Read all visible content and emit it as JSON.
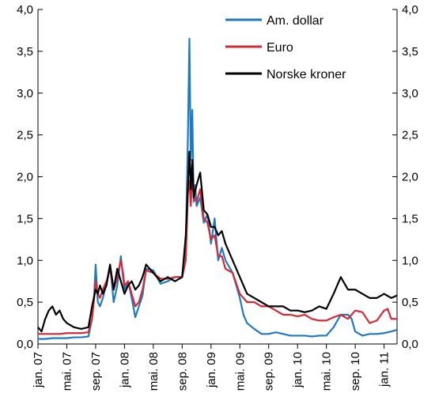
{
  "chart_data": {
    "type": "line",
    "title": "",
    "xlabel": "",
    "ylabel": "",
    "ylim": [
      0,
      4
    ],
    "yticks": [
      "0,0",
      "0,5",
      "1,0",
      "1,5",
      "2,0",
      "2,5",
      "3,0",
      "3,5",
      "4,0"
    ],
    "dual_y_axis": true,
    "grid": false,
    "legend_position": "top-right",
    "x_tick_labels": [
      "jan. 07",
      "mai. 07",
      "sep. 07",
      "jan. 08",
      "mai. 08",
      "sep. 08",
      "jan. 09",
      "mai. 09",
      "sep. 09",
      "jan. 10",
      "mai. 10",
      "sep. 10",
      "jan. 11"
    ],
    "x_tick_months": [
      0,
      4,
      8,
      12,
      16,
      20,
      24,
      28,
      32,
      36,
      40,
      44,
      48
    ],
    "x_range_months": [
      0,
      49.8
    ],
    "x_unit": "months since jan. 07",
    "series": [
      {
        "name": "Am. dollar",
        "color": "#1f7ac4",
        "x": [
          0,
          0.5,
          1,
          2,
          3,
          4,
          5,
          6,
          7,
          7.5,
          7.8,
          8,
          8.3,
          8.6,
          9,
          9.5,
          10,
          10.5,
          11,
          11.5,
          11.8,
          12,
          12.5,
          13,
          13.5,
          14,
          14.5,
          15,
          16,
          17,
          18,
          19,
          20,
          20.5,
          20.8,
          21,
          21.2,
          21.4,
          21.6,
          21.8,
          22,
          22.5,
          23,
          23.5,
          24,
          24.5,
          25,
          25.5,
          26,
          27,
          28,
          28.5,
          29,
          30,
          31,
          32,
          33,
          34,
          35,
          36,
          37,
          38,
          39,
          40,
          41,
          42,
          43,
          43.5,
          44,
          45,
          46,
          47,
          48,
          49,
          49.8
        ],
        "y": [
          0.06,
          0.06,
          0.06,
          0.07,
          0.07,
          0.07,
          0.08,
          0.08,
          0.09,
          0.3,
          0.6,
          0.95,
          0.5,
          0.45,
          0.55,
          0.72,
          0.95,
          0.5,
          0.7,
          1.05,
          0.8,
          0.65,
          0.75,
          0.55,
          0.32,
          0.45,
          0.58,
          0.9,
          0.88,
          0.72,
          0.75,
          0.8,
          0.8,
          1.2,
          2.5,
          3.65,
          2.2,
          2.8,
          1.7,
          1.9,
          1.65,
          1.75,
          1.45,
          1.55,
          1.2,
          1.5,
          1.0,
          1.15,
          1.0,
          0.85,
          0.55,
          0.35,
          0.25,
          0.18,
          0.12,
          0.12,
          0.14,
          0.12,
          0.1,
          0.1,
          0.1,
          0.09,
          0.1,
          0.1,
          0.2,
          0.35,
          0.35,
          0.3,
          0.15,
          0.1,
          0.12,
          0.12,
          0.13,
          0.15,
          0.17
        ]
      },
      {
        "name": "Euro",
        "color": "#d42a35",
        "x": [
          0,
          1,
          2,
          3,
          4,
          5,
          6,
          7,
          7.5,
          7.8,
          8,
          8.3,
          8.6,
          9,
          9.5,
          10,
          10.5,
          11,
          11.5,
          11.8,
          12,
          12.5,
          13,
          13.5,
          14,
          14.5,
          15,
          16,
          17,
          18,
          19,
          20,
          20.5,
          20.8,
          21,
          21.2,
          21.4,
          21.6,
          22,
          22.5,
          23,
          23.5,
          24,
          24.5,
          25,
          25.5,
          26,
          27,
          28,
          29,
          30,
          31,
          32,
          33,
          34,
          35,
          36,
          37,
          38,
          39,
          40,
          41,
          42,
          43,
          44,
          45,
          46,
          47,
          48,
          48.5,
          49,
          49.8
        ],
        "y": [
          0.12,
          0.12,
          0.12,
          0.12,
          0.13,
          0.13,
          0.13,
          0.14,
          0.3,
          0.55,
          0.75,
          0.6,
          0.55,
          0.65,
          0.75,
          0.9,
          0.65,
          0.8,
          1.0,
          0.85,
          0.7,
          0.75,
          0.6,
          0.45,
          0.5,
          0.65,
          0.88,
          0.85,
          0.78,
          0.78,
          0.8,
          0.8,
          1.0,
          1.8,
          1.95,
          1.65,
          2.05,
          1.75,
          1.7,
          1.85,
          1.5,
          1.45,
          1.25,
          1.3,
          1.05,
          1.05,
          0.9,
          0.85,
          0.6,
          0.5,
          0.5,
          0.45,
          0.45,
          0.4,
          0.35,
          0.35,
          0.33,
          0.35,
          0.3,
          0.28,
          0.28,
          0.32,
          0.35,
          0.3,
          0.4,
          0.38,
          0.25,
          0.28,
          0.4,
          0.42,
          0.3,
          0.3
        ]
      },
      {
        "name": "Norske kroner",
        "color": "#000000",
        "x": [
          0,
          0.5,
          1,
          1.5,
          2,
          2.5,
          3,
          3.5,
          4,
          5,
          6,
          7,
          7.5,
          8,
          8.3,
          8.6,
          9,
          9.5,
          10,
          10.5,
          11,
          11.5,
          12,
          12.5,
          13,
          13.5,
          14,
          14.5,
          15,
          16,
          17,
          18,
          19,
          20,
          20.5,
          20.8,
          21,
          21.2,
          21.4,
          21.6,
          22,
          22.5,
          23,
          23.5,
          24,
          24.5,
          25,
          25.5,
          26,
          27,
          28,
          29,
          30,
          31,
          32,
          33,
          34,
          35,
          36,
          37,
          38,
          39,
          40,
          41,
          42,
          43,
          44,
          45,
          46,
          47,
          48,
          49,
          49.8
        ],
        "y": [
          0.2,
          0.15,
          0.3,
          0.4,
          0.45,
          0.35,
          0.4,
          0.3,
          0.25,
          0.2,
          0.18,
          0.2,
          0.45,
          0.65,
          0.6,
          0.7,
          0.6,
          0.7,
          0.95,
          0.65,
          0.9,
          0.75,
          0.6,
          0.7,
          0.75,
          0.65,
          0.7,
          0.8,
          0.95,
          0.85,
          0.75,
          0.8,
          0.75,
          0.8,
          1.3,
          1.9,
          2.3,
          1.85,
          2.2,
          1.75,
          1.9,
          2.05,
          1.6,
          1.55,
          1.4,
          1.4,
          1.3,
          1.35,
          1.2,
          1.0,
          0.8,
          0.6,
          0.55,
          0.5,
          0.45,
          0.45,
          0.45,
          0.4,
          0.4,
          0.38,
          0.4,
          0.45,
          0.42,
          0.6,
          0.8,
          0.65,
          0.65,
          0.6,
          0.55,
          0.55,
          0.6,
          0.55,
          0.58
        ]
      }
    ]
  }
}
